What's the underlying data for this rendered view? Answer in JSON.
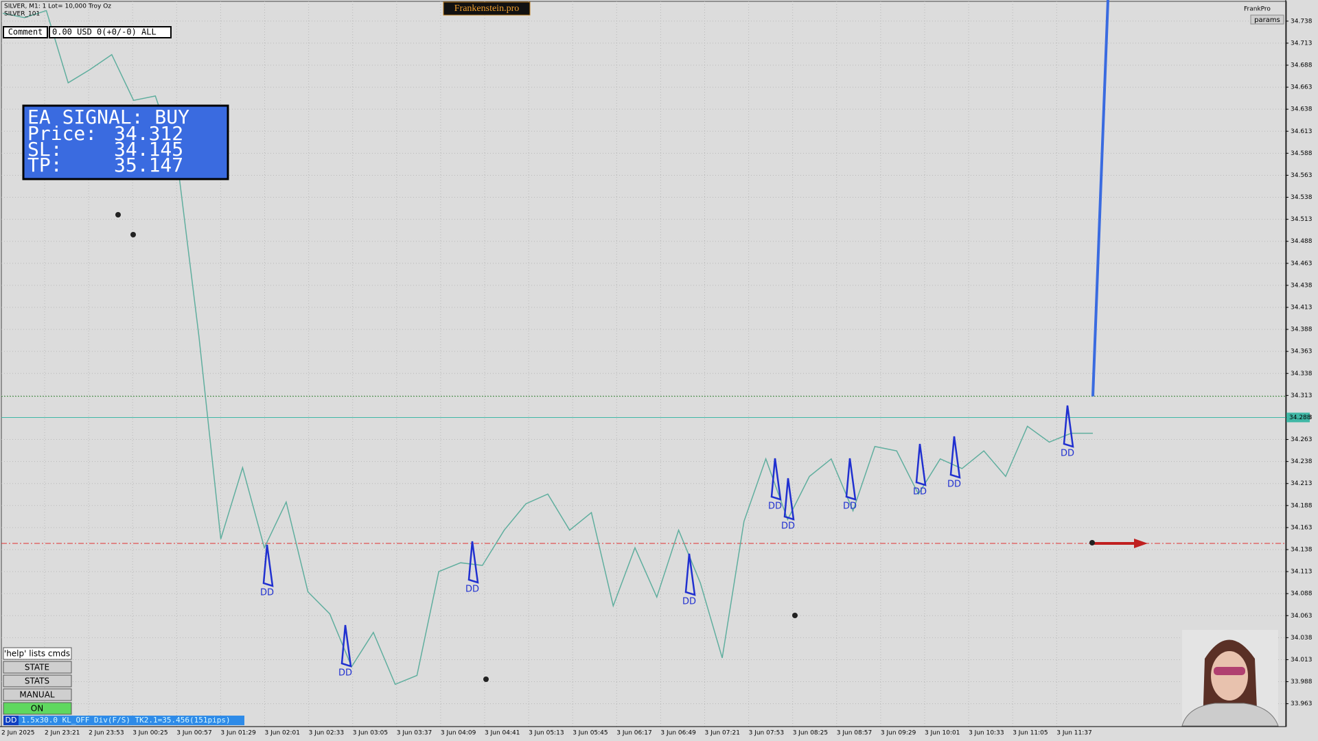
{
  "header": {
    "symbol": "SILVER, M1:  1 Lot= 10,000 Troy Oz",
    "account": "SILVER_101",
    "brand": "Frankenstein.pro",
    "user": "FrankPro",
    "params": "params"
  },
  "comment": {
    "label": "Comment",
    "text": "0.00 USD 0(+0/-0) ALL"
  },
  "signal": {
    "title": "EA SIGNAL: BUY",
    "lines": [
      {
        "label": "Price:",
        "value": 34.312
      },
      {
        "label": "SL:",
        "value": 34.145
      },
      {
        "label": "TP:",
        "value": 35.147
      }
    ]
  },
  "buttons": [
    "'help' lists cmds",
    "STATE",
    "STATS",
    "MANUAL",
    "ON"
  ],
  "status": {
    "tag": "DD",
    "text": "1.5x30.0 KL_OFF Div(F/S) TK2.1=35.456(151pips)"
  },
  "chart_data": {
    "type": "line",
    "color": "#5fae9e",
    "grid": true,
    "ylim": [
      33.937,
      34.762
    ],
    "yticks": [
      33.963,
      33.988,
      34.013,
      34.038,
      34.063,
      34.088,
      34.113,
      34.138,
      34.163,
      34.188,
      34.213,
      34.238,
      34.263,
      34.288,
      34.313,
      34.338,
      34.363,
      34.388,
      34.413,
      34.438,
      34.463,
      34.488,
      34.513,
      34.538,
      34.563,
      34.588,
      34.613,
      34.638,
      34.663,
      34.688,
      34.713,
      34.738
    ],
    "xlabels": [
      "2 Jun 2025",
      "2 Jun 23:21",
      "2 Jun 23:53",
      "3 Jun 00:25",
      "3 Jun 00:57",
      "3 Jun 01:29",
      "3 Jun 02:01",
      "3 Jun 02:33",
      "3 Jun 03:05",
      "3 Jun 03:37",
      "3 Jun 04:09",
      "3 Jun 04:41",
      "3 Jun 05:13",
      "3 Jun 05:45",
      "3 Jun 06:17",
      "3 Jun 06:49",
      "3 Jun 07:21",
      "3 Jun 07:53",
      "3 Jun 08:25",
      "3 Jun 08:57",
      "3 Jun 09:29",
      "3 Jun 10:01",
      "3 Jun 10:33",
      "3 Jun 11:05",
      "3 Jun 11:37"
    ],
    "values": [
      34.747,
      34.742,
      34.75,
      34.668,
      34.683,
      34.7,
      34.648,
      34.653,
      34.58,
      34.38,
      34.15,
      34.231,
      34.14,
      34.192,
      34.09,
      34.065,
      34.005,
      34.044,
      33.985,
      33.995,
      34.113,
      34.123,
      34.12,
      34.16,
      34.19,
      34.201,
      34.16,
      34.18,
      34.074,
      34.14,
      34.084,
      34.16,
      34.1,
      34.015,
      34.17,
      34.241,
      34.172,
      34.221,
      34.241,
      34.182,
      34.255,
      34.25,
      34.201,
      34.241,
      34.23,
      34.25,
      34.221,
      34.278,
      34.26,
      34.27,
      34.27
    ],
    "current": 34.288,
    "markers": [
      "DD",
      "DD",
      "DD",
      "DD",
      "DD",
      "DD",
      "DD",
      "DD",
      "DD",
      "DD"
    ]
  }
}
